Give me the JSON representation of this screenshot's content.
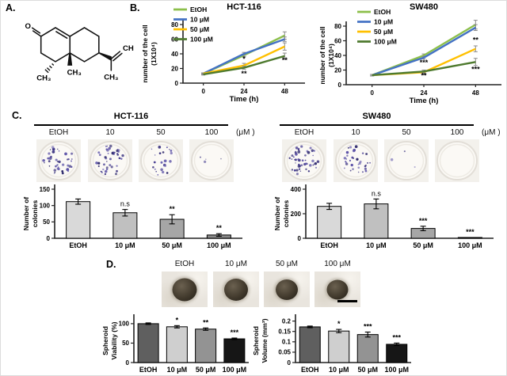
{
  "panel_labels": {
    "a": "A.",
    "b": "B.",
    "c": "C.",
    "d": "D."
  },
  "molecule": {
    "o": "O",
    "ch3_left": "CH₃",
    "ch3_angular": "CH₃",
    "ch2": "CH₂",
    "ch3_iso": "CH₃"
  },
  "chart_data": [
    {
      "id": "hct116_growth",
      "type": "line",
      "title": "HCT-116",
      "ylabel_lines": [
        "number of the cell",
        "(1X10⁴)"
      ],
      "xlabel": "Time (h)",
      "x": [
        0,
        24,
        48
      ],
      "ylim": [
        0,
        80
      ],
      "yticks": [
        0,
        20,
        40,
        60,
        80
      ],
      "series": [
        {
          "name": "EtOH",
          "color": "#8cbf4a",
          "values": [
            13,
            38,
            65
          ],
          "err": [
            1,
            2,
            5
          ]
        },
        {
          "name": "10 μM",
          "color": "#4472c4",
          "values": [
            13,
            40,
            60
          ],
          "err": [
            1,
            2,
            3
          ]
        },
        {
          "name": "50 μM",
          "color": "#ffc000",
          "values": [
            13,
            24,
            50
          ],
          "err": [
            1,
            3,
            5
          ]
        },
        {
          "name": "100 μM",
          "color": "#4e7a2e",
          "values": [
            12,
            21,
            37
          ],
          "err": [
            1,
            2,
            4
          ]
        }
      ],
      "annotations": [
        {
          "xi": 1,
          "y": 30,
          "t": "*"
        },
        {
          "xi": 1,
          "y": 10,
          "t": "**"
        },
        {
          "xi": 2,
          "y": 28,
          "t": "**"
        }
      ],
      "legend_position": "top-left",
      "grid": false
    },
    {
      "id": "sw480_growth",
      "type": "line",
      "title": "SW480",
      "ylabel_lines": [
        "number of the cell",
        "(1X10⁴)"
      ],
      "xlabel": "Time (h)",
      "x": [
        0,
        24,
        48
      ],
      "ylim": [
        0,
        80
      ],
      "yticks": [
        0,
        20,
        40,
        60,
        80
      ],
      "series": [
        {
          "name": "EtOH",
          "color": "#8cbf4a",
          "values": [
            13,
            40,
            82
          ],
          "err": [
            1,
            2,
            6
          ]
        },
        {
          "name": "10 μM",
          "color": "#4472c4",
          "values": [
            13,
            37,
            78
          ],
          "err": [
            1,
            2,
            4
          ]
        },
        {
          "name": "50 μM",
          "color": "#ffc000",
          "values": [
            13,
            17,
            49
          ],
          "err": [
            1,
            3,
            4
          ]
        },
        {
          "name": "100 μM",
          "color": "#4e7a2e",
          "values": [
            13,
            18,
            31
          ],
          "err": [
            1,
            2,
            5
          ]
        }
      ],
      "annotations": [
        {
          "xi": 1,
          "y": 27,
          "t": "***"
        },
        {
          "xi": 1,
          "y": 9,
          "t": "**"
        },
        {
          "xi": 2,
          "y": 58,
          "t": "**"
        },
        {
          "xi": 2,
          "y": 18,
          "t": "***"
        }
      ],
      "legend_position": "top-left",
      "grid": false
    },
    {
      "id": "hct116_colonies",
      "type": "bar",
      "ylabel_lines": [
        "Number of",
        "colonies"
      ],
      "categories": [
        "EtOH",
        "10 μM",
        "50 μM",
        "100 μM"
      ],
      "values": [
        112,
        78,
        58,
        10
      ],
      "errors": [
        8,
        10,
        14,
        4
      ],
      "sig": [
        "",
        "n.s",
        "**",
        "**"
      ],
      "ylim": [
        0,
        150
      ],
      "yticks": [
        0,
        50,
        100,
        150
      ],
      "colors": [
        "#d9d9d9",
        "#c0c0c0",
        "#a6a6a6",
        "#8a8a8a"
      ]
    },
    {
      "id": "sw480_colonies",
      "type": "bar",
      "ylabel_lines": [
        "Number of",
        "colonies"
      ],
      "categories": [
        "EtOH",
        "10 μM",
        "50 μM",
        "100 μM"
      ],
      "values": [
        260,
        280,
        80,
        3
      ],
      "errors": [
        25,
        40,
        18,
        2
      ],
      "sig": [
        "",
        "n.s",
        "***",
        "***"
      ],
      "ylim": [
        0,
        400
      ],
      "yticks": [
        0,
        200,
        400
      ],
      "colors": [
        "#d9d9d9",
        "#c0c0c0",
        "#a6a6a6",
        "#8a8a8a"
      ]
    },
    {
      "id": "spheroid_viability",
      "type": "bar",
      "ylabel_lines": [
        "Spheroid",
        "Viability (%)"
      ],
      "categories": [
        "EtOH",
        "10 μM",
        "50 μM",
        "100 μM"
      ],
      "values": [
        100,
        92,
        86,
        61
      ],
      "errors": [
        2,
        3,
        3,
        2
      ],
      "sig": [
        "",
        "*",
        "**",
        "***"
      ],
      "ylim": [
        0,
        112
      ],
      "yticks": [
        0,
        50,
        100
      ],
      "colors": [
        "#5f5f5f",
        "#cfcfcf",
        "#939393",
        "#161616"
      ]
    },
    {
      "id": "spheroid_volume",
      "type": "bar",
      "ylabel_lines": [
        "Spheroid",
        "Volume (mm³)"
      ],
      "categories": [
        "EtOH",
        "10 μM",
        "50 μM",
        "100 μM"
      ],
      "values": [
        0.172,
        0.152,
        0.135,
        0.088
      ],
      "errors": [
        0.004,
        0.008,
        0.012,
        0.006
      ],
      "sig": [
        "",
        "*",
        "***",
        "***"
      ],
      "ylim": [
        0,
        0.21
      ],
      "yticks": [
        0,
        0.05,
        0.1,
        0.15,
        0.2
      ],
      "ytick_labels": [
        "0",
        "0.05",
        "0.1",
        "0.15",
        "0.2"
      ],
      "colors": [
        "#5f5f5f",
        "#cfcfcf",
        "#939393",
        "#161616"
      ]
    }
  ],
  "colony_assay": {
    "hct116": {
      "title": "HCT-116",
      "col_labels": [
        "EtOH",
        "10",
        "50",
        "100"
      ],
      "unit_label": "(μM )",
      "dot_counts": [
        42,
        46,
        22,
        4
      ]
    },
    "sw480": {
      "title": "SW480",
      "col_labels": [
        "EtOH",
        "10",
        "50",
        "100"
      ],
      "unit_label": "(μM )",
      "dot_counts": [
        52,
        34,
        3,
        0
      ]
    }
  },
  "spheroid": {
    "labels": [
      "EtOH",
      "10 μM",
      "50 μM",
      "100 μM"
    ],
    "diameters": [
      31,
      30,
      28,
      27
    ]
  }
}
